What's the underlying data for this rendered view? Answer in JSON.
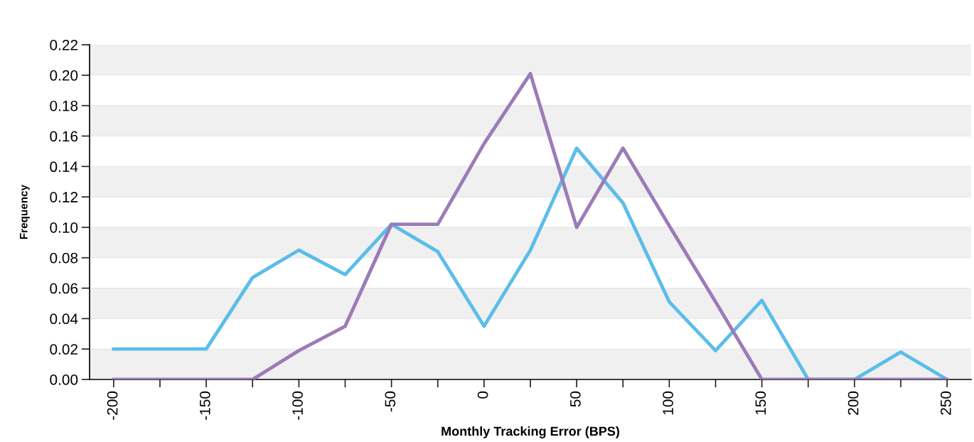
{
  "chart_data": {
    "type": "line",
    "xlabel": "Monthly Tracking Error (BPS)",
    "ylabel": "Frequency",
    "x": [
      -200,
      -175,
      -150,
      -125,
      -100,
      -75,
      -50,
      -25,
      0,
      25,
      50,
      75,
      100,
      125,
      150,
      175,
      200,
      225,
      250
    ],
    "series": [
      {
        "color": "#5bbde9",
        "values": [
          0.02,
          0.02,
          0.02,
          0.067,
          0.085,
          0.069,
          0.102,
          0.084,
          0.035,
          0.085,
          0.152,
          0.116,
          0.051,
          0.019,
          0.052,
          0.0,
          0.0,
          0.018,
          0.0
        ]
      },
      {
        "color": "#9b7bb8",
        "values": [
          0.0,
          0.0,
          0.0,
          0.0,
          0.019,
          0.035,
          0.102,
          0.102,
          0.155,
          0.201,
          0.1,
          0.152,
          0.101,
          0.051,
          0.0,
          0.0,
          0.0,
          0.0,
          0.0
        ]
      }
    ],
    "xlim": [
      -213,
      263
    ],
    "xticks": [
      -200,
      {
        "value": -175,
        "label": null
      },
      -150,
      {
        "value": -125,
        "label": null
      },
      -100,
      {
        "value": -75,
        "label": null
      },
      -50,
      {
        "value": -25,
        "label": null
      },
      0,
      {
        "value": 25,
        "label": null
      },
      50,
      {
        "value": 75,
        "label": null
      },
      100,
      {
        "value": 125,
        "label": null
      },
      150,
      {
        "value": 175,
        "label": null
      },
      200,
      {
        "value": 225,
        "label": null
      },
      250
    ],
    "ylim": [
      0,
      0.22
    ],
    "yticks": [
      {
        "value": 0,
        "label": "0.00"
      },
      {
        "value": 0.02,
        "label": "0.02"
      },
      {
        "value": 0.04,
        "label": "0.04"
      },
      {
        "value": 0.06,
        "label": "0.06"
      },
      {
        "value": 0.08,
        "label": "0.08"
      },
      {
        "value": 0.1,
        "label": "0.10"
      },
      {
        "value": 0.12,
        "label": "0.12"
      },
      {
        "value": 0.14,
        "label": "0.14"
      },
      {
        "value": 0.16,
        "label": "0.16"
      },
      {
        "value": 0.18,
        "label": "0.18"
      },
      {
        "value": 0.2,
        "label": "0.20"
      },
      {
        "value": 0.22,
        "label": "0.22"
      }
    ],
    "grid": "y",
    "marker": "none",
    "line_style": "solid"
  }
}
